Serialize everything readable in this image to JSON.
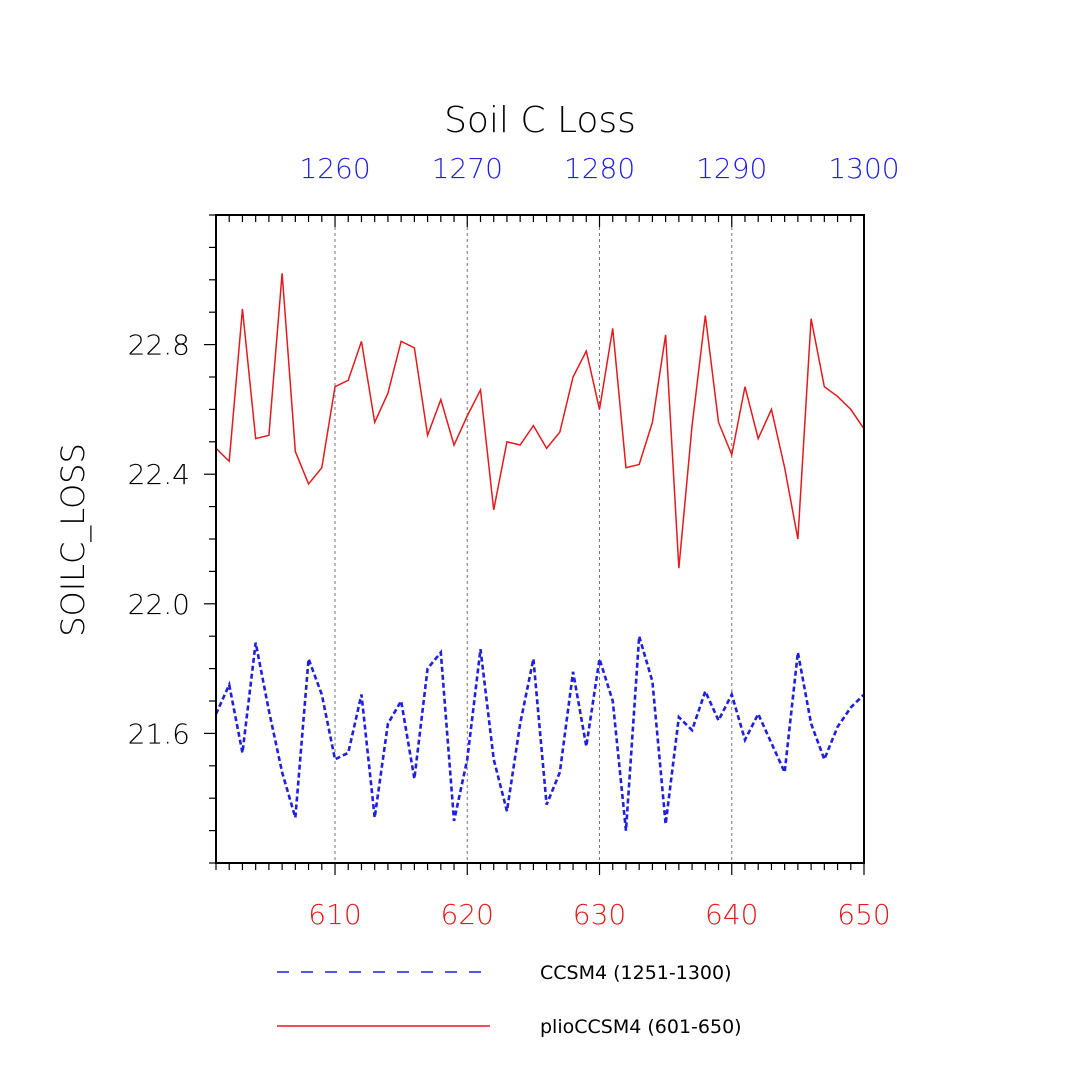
{
  "chart_data": {
    "type": "line",
    "title": "Soil C Loss",
    "ylabel": "SOILC_LOSS",
    "ylim": [
      21.2,
      23.2
    ],
    "yticks_major": [
      21.6,
      22.0,
      22.4,
      22.8
    ],
    "ytick_labels": [
      "21.6",
      "22.0",
      "22.4",
      "22.8"
    ],
    "x_bottom": {
      "range": [
        601,
        650
      ],
      "ticks": [
        610,
        620,
        630,
        640,
        650
      ],
      "tick_labels": [
        "610",
        "620",
        "630",
        "640",
        "650"
      ],
      "color": "#e41a1c"
    },
    "x_top": {
      "range": [
        1251,
        1300
      ],
      "ticks": [
        1260,
        1270,
        1280,
        1290,
        1300
      ],
      "tick_labels": [
        "1260",
        "1270",
        "1280",
        "1290",
        "1300"
      ],
      "color": "#1f1fe0"
    },
    "gridlines_x": [
      610,
      620,
      630,
      640
    ],
    "legend_position": "bottom",
    "series": [
      {
        "name": "CCSM4 (1251-1300)",
        "color": "#1f1fe0",
        "style": "dashed",
        "axis": "top",
        "x_start": 1251,
        "values": [
          21.66,
          21.75,
          21.54,
          21.88,
          21.67,
          21.48,
          21.34,
          21.83,
          21.72,
          21.52,
          21.54,
          21.72,
          21.34,
          21.63,
          21.7,
          21.46,
          21.8,
          21.85,
          21.33,
          21.52,
          21.86,
          21.52,
          21.36,
          21.63,
          21.83,
          21.38,
          21.48,
          21.79,
          21.56,
          21.83,
          21.7,
          21.3,
          21.9,
          21.76,
          21.32,
          21.65,
          21.61,
          21.73,
          21.64,
          21.72,
          21.58,
          21.66,
          21.57,
          21.48,
          21.85,
          21.63,
          21.52,
          21.62,
          21.68,
          21.72
        ]
      },
      {
        "name": "plioCCSM4 (601-650)",
        "color": "#e41a1c",
        "style": "solid",
        "axis": "bottom",
        "x_start": 601,
        "values": [
          22.48,
          22.44,
          22.91,
          22.51,
          22.52,
          23.02,
          22.47,
          22.37,
          22.42,
          22.67,
          22.69,
          22.81,
          22.56,
          22.65,
          22.81,
          22.79,
          22.52,
          22.63,
          22.49,
          22.58,
          22.66,
          22.29,
          22.5,
          22.49,
          22.55,
          22.48,
          22.53,
          22.7,
          22.78,
          22.6,
          22.85,
          22.42,
          22.43,
          22.56,
          22.83,
          22.11,
          22.55,
          22.89,
          22.56,
          22.46,
          22.67,
          22.51,
          22.6,
          22.42,
          22.2,
          22.88,
          22.67,
          22.64,
          22.6,
          22.54
        ]
      }
    ]
  }
}
